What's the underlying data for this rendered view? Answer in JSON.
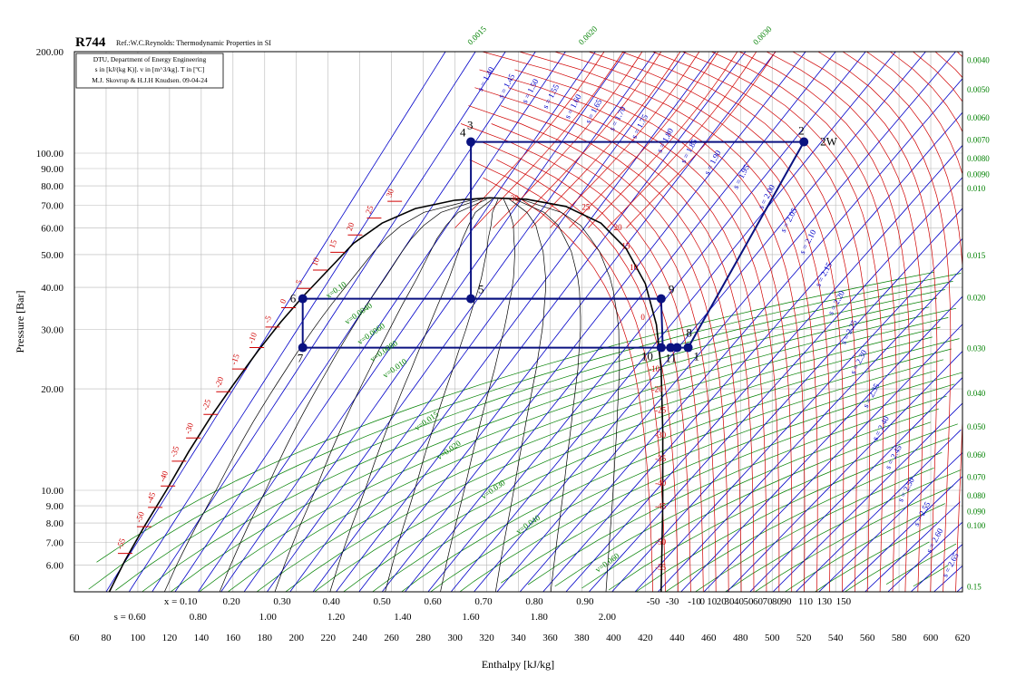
{
  "chart_data": {
    "type": "line",
    "title": "R744",
    "reference": "Ref.:W.C.Reynolds: Thermodynamic Properties in SI",
    "info_box": [
      "DTU, Department of Energy Engineering",
      "s in [kJ/(kg K)]. v in [m^3/kg]. T in [ºC]",
      "M.J. Skovrup & H.J.H Knudsen. 09-04-24"
    ],
    "xlabel": "Enthalpy [kJ/kg]",
    "ylabel": "Pressure [Bar]",
    "xlim": [
      60,
      620
    ],
    "ylim": [
      5,
      200
    ],
    "y_scale": "log",
    "grid": true,
    "x_ticks": [
      "60",
      "80",
      "100",
      "120",
      "140",
      "160",
      "180",
      "200",
      "220",
      "240",
      "260",
      "280",
      "300",
      "320",
      "340",
      "360",
      "380",
      "400",
      "420",
      "440",
      "460",
      "480",
      "500",
      "520",
      "540",
      "560",
      "580",
      "600",
      "620"
    ],
    "y_ticks": [
      {
        "value": 200,
        "label": "200.00"
      },
      {
        "value": 100,
        "label": "100.00"
      },
      {
        "value": 90,
        "label": "90.00"
      },
      {
        "value": 80,
        "label": "80.00"
      },
      {
        "value": 70,
        "label": "70.00"
      },
      {
        "value": 60,
        "label": "60.00"
      },
      {
        "value": 50,
        "label": "50.00"
      },
      {
        "value": 40,
        "label": "40.00"
      },
      {
        "value": 30,
        "label": "30.00"
      },
      {
        "value": 20,
        "label": "20.00"
      },
      {
        "value": 10,
        "label": "10.00"
      },
      {
        "value": 9,
        "label": "9.00"
      },
      {
        "value": 8,
        "label": "8.00"
      },
      {
        "value": 7,
        "label": "7.00"
      },
      {
        "value": 6,
        "label": "6.00"
      }
    ],
    "x_quality_ticks": [
      {
        "h": 127,
        "label": "x = 0.10"
      },
      {
        "h": 159,
        "label": "0.20"
      },
      {
        "h": 191,
        "label": "0.30"
      },
      {
        "h": 222,
        "label": "0.40"
      },
      {
        "h": 254,
        "label": "0.50"
      },
      {
        "h": 286,
        "label": "0.60"
      },
      {
        "h": 318,
        "label": "0.70"
      },
      {
        "h": 350,
        "label": "0.80"
      },
      {
        "h": 382,
        "label": "0.90"
      }
    ],
    "s_ticks": [
      {
        "h": 95,
        "label": "s = 0.60"
      },
      {
        "h": 138,
        "label": "0.80"
      },
      {
        "h": 182,
        "label": "1.00"
      },
      {
        "h": 225,
        "label": "1.20"
      },
      {
        "h": 267,
        "label": "1.40"
      },
      {
        "h": 310,
        "label": "1.60"
      },
      {
        "h": 353,
        "label": "1.80"
      },
      {
        "h": 396,
        "label": "2.00"
      }
    ],
    "t_ticks": [
      {
        "h": 425,
        "label": "-50"
      },
      {
        "h": 437,
        "label": "-30"
      },
      {
        "h": 451,
        "label": "-10"
      },
      {
        "h": 456,
        "label": "0"
      },
      {
        "h": 462,
        "label": "10"
      },
      {
        "h": 468,
        "label": "20"
      },
      {
        "h": 473,
        "label": "30"
      },
      {
        "h": 479,
        "label": "40"
      },
      {
        "h": 485,
        "label": "50"
      },
      {
        "h": 491,
        "label": "60"
      },
      {
        "h": 497,
        "label": "70"
      },
      {
        "h": 503,
        "label": "80"
      },
      {
        "h": 509,
        "label": "90"
      },
      {
        "h": 521,
        "label": "110"
      },
      {
        "h": 533,
        "label": "130"
      },
      {
        "h": 545,
        "label": "150"
      }
    ],
    "right_v_labels": [
      {
        "p": 190,
        "label": "0.0040"
      },
      {
        "p": 155,
        "label": "0.0050"
      },
      {
        "p": 128,
        "label": "0.0060"
      },
      {
        "p": 110,
        "label": "0.0070"
      },
      {
        "p": 97,
        "label": "0.0080"
      },
      {
        "p": 87,
        "label": "0.0090"
      },
      {
        "p": 79,
        "label": "0.010"
      },
      {
        "p": 50,
        "label": "0.015"
      },
      {
        "p": 37.5,
        "label": "0.020"
      },
      {
        "p": 26.5,
        "label": "0.030"
      },
      {
        "p": 19.5,
        "label": "0.040"
      },
      {
        "p": 15.5,
        "label": "0.050"
      },
      {
        "p": 12.8,
        "label": "0.060"
      },
      {
        "p": 11.0,
        "label": "0.070"
      },
      {
        "p": 9.7,
        "label": "0.080"
      },
      {
        "p": 8.7,
        "label": "0.090"
      },
      {
        "p": 7.9,
        "label": "0.100"
      },
      {
        "p": 5.2,
        "label": "0.15"
      }
    ],
    "top_v_labels": [
      {
        "h": 310,
        "label": "0.0015"
      },
      {
        "h": 380,
        "label": "0.0020"
      },
      {
        "h": 490,
        "label": "0.0030"
      }
    ],
    "sat_liquid_temps": [
      {
        "h": 92,
        "p": 6.5,
        "label": "-55"
      },
      {
        "h": 104,
        "p": 7.8,
        "label": "-50"
      },
      {
        "h": 111,
        "p": 8.9,
        "label": "-45"
      },
      {
        "h": 119,
        "p": 10.3,
        "label": "-40"
      },
      {
        "h": 126,
        "p": 12.2,
        "label": "-35"
      },
      {
        "h": 135,
        "p": 14.3,
        "label": "-30"
      },
      {
        "h": 146,
        "p": 16.8,
        "label": "-25"
      },
      {
        "h": 154,
        "p": 19.6,
        "label": "-20"
      },
      {
        "h": 164,
        "p": 22.9,
        "label": "-15"
      },
      {
        "h": 175,
        "p": 26.5,
        "label": "-10"
      },
      {
        "h": 185,
        "p": 30.5,
        "label": "-5"
      },
      {
        "h": 195,
        "p": 34.8,
        "label": "0"
      },
      {
        "h": 205,
        "p": 39.7,
        "label": "5"
      },
      {
        "h": 215,
        "p": 45.0,
        "label": "10"
      },
      {
        "h": 226,
        "p": 50.8,
        "label": "15"
      },
      {
        "h": 237,
        "p": 57.2,
        "label": "20"
      },
      {
        "h": 249,
        "p": 64.2,
        "label": "25"
      },
      {
        "h": 262,
        "p": 72.0,
        "label": "30"
      }
    ],
    "sat_vapor_temps": [
      {
        "h": 399,
        "p": 59,
        "label": "20"
      },
      {
        "h": 404,
        "p": 52,
        "label": "15"
      },
      {
        "h": 409,
        "p": 45,
        "label": "10"
      },
      {
        "h": 416,
        "p": 32,
        "label": "0"
      },
      {
        "h": 421,
        "p": 22.5,
        "label": "-10"
      },
      {
        "h": 423,
        "p": 19.6,
        "label": "-20"
      },
      {
        "h": 425,
        "p": 17.0,
        "label": "-25"
      },
      {
        "h": 425,
        "p": 14.3,
        "label": "-30"
      },
      {
        "h": 425,
        "p": 12.2,
        "label": "-35"
      },
      {
        "h": 425,
        "p": 10.3,
        "label": "-40"
      },
      {
        "h": 425,
        "p": 8.8,
        "label": "-45"
      },
      {
        "h": 425,
        "p": 6.9,
        "label": "-50"
      },
      {
        "h": 425,
        "p": 5.8,
        "label": "-55"
      }
    ],
    "isotherm_top_labels": [
      {
        "h": 335,
        "p": 72,
        "label": "30"
      },
      {
        "h": 380,
        "p": 68,
        "label": "25"
      }
    ],
    "quality_inline_labels": [
      {
        "h": 220,
        "p": 37,
        "label": "x=0.10"
      },
      {
        "h": 232,
        "p": 31,
        "label": "v=0.0040"
      },
      {
        "h": 240,
        "p": 27,
        "label": "v=0.0060"
      },
      {
        "h": 248,
        "p": 24,
        "label": "v=0.0080"
      },
      {
        "h": 256,
        "p": 21.5,
        "label": "v=0.010"
      },
      {
        "h": 276,
        "p": 15,
        "label": "v=0.015"
      },
      {
        "h": 290,
        "p": 12.3,
        "label": "v=0.020"
      },
      {
        "h": 318,
        "p": 9.4,
        "label": "v=0.030"
      },
      {
        "h": 340,
        "p": 7.4,
        "label": "v=0.040"
      },
      {
        "h": 390,
        "p": 5.7,
        "label": "v=0.060"
      }
    ],
    "entropy_inline_labels": [
      {
        "h": 317,
        "p": 152,
        "label": "s = 1.40"
      },
      {
        "h": 330,
        "p": 145,
        "label": "s = 1.45"
      },
      {
        "h": 345,
        "p": 140,
        "label": "s = 1.50"
      },
      {
        "h": 358,
        "p": 135,
        "label": "s = 1.55"
      },
      {
        "h": 372,
        "p": 126,
        "label": "s = 1.60"
      },
      {
        "h": 385,
        "p": 122,
        "label": "s = 1.65"
      },
      {
        "h": 400,
        "p": 116,
        "label": "s = 1.70"
      },
      {
        "h": 414,
        "p": 110,
        "label": "s = 1.75"
      },
      {
        "h": 430,
        "p": 100,
        "label": "s = 1.80"
      },
      {
        "h": 445,
        "p": 93,
        "label": "s = 1.85"
      },
      {
        "h": 460,
        "p": 86,
        "label": "s = 1.90"
      },
      {
        "h": 478,
        "p": 78,
        "label": "s = 1.95"
      },
      {
        "h": 494,
        "p": 68,
        "label": "s = 2.00"
      },
      {
        "h": 508,
        "p": 58,
        "label": "s = 2.05"
      },
      {
        "h": 520,
        "p": 50,
        "label": "s = 2.10"
      },
      {
        "h": 530,
        "p": 40,
        "label": "s = 2.15"
      },
      {
        "h": 538,
        "p": 33,
        "label": "s = 2.20"
      },
      {
        "h": 546,
        "p": 27,
        "label": "s = 2.25"
      },
      {
        "h": 552,
        "p": 22,
        "label": "s = 2.30"
      },
      {
        "h": 560,
        "p": 17.5,
        "label": "s = 2.35"
      },
      {
        "h": 566,
        "p": 14,
        "label": "s = 2.40"
      },
      {
        "h": 574,
        "p": 11.5,
        "label": "s = 2.45"
      },
      {
        "h": 582,
        "p": 9.2,
        "label": "s = 2.50"
      },
      {
        "h": 592,
        "p": 7.8,
        "label": "s = 2.55"
      },
      {
        "h": 600,
        "p": 6.5,
        "label": "s = 2.60"
      },
      {
        "h": 610,
        "p": 5.5,
        "label": "s = 2.65"
      }
    ],
    "cycle_points": [
      {
        "label": "2",
        "h": 520,
        "p": 108
      },
      {
        "label": "2W",
        "h": 528,
        "p": 108,
        "marker": false
      },
      {
        "label": "3",
        "h": 310,
        "p": 108
      },
      {
        "label": "4",
        "h": 310,
        "p": 108,
        "marker": false
      },
      {
        "label": "5",
        "h": 310,
        "p": 37
      },
      {
        "label": "6",
        "h": 204,
        "p": 37
      },
      {
        "label": "7",
        "h": 204,
        "p": 26.5
      },
      {
        "label": "8",
        "h": 440,
        "p": 26.5
      },
      {
        "label": "9",
        "h": 430,
        "p": 37
      },
      {
        "label": "10",
        "h": 430,
        "p": 26.5
      },
      {
        "label": "11",
        "h": 436,
        "p": 26.5
      },
      {
        "label": "1",
        "h": 447,
        "p": 26.5
      }
    ],
    "cycle_path": [
      [
        520,
        108
      ],
      [
        310,
        108
      ],
      [
        310,
        37
      ],
      [
        430,
        37
      ],
      [
        431,
        26.5
      ],
      [
        447,
        26.5
      ],
      [
        520,
        108
      ]
    ],
    "cycle_extra": [
      [
        [
          204,
          37
        ],
        [
          430,
          37
        ]
      ],
      [
        [
          204,
          37
        ],
        [
          204,
          26.5
        ]
      ],
      [
        [
          204,
          26.5
        ],
        [
          431,
          26.5
        ]
      ]
    ],
    "saturation_dome": [
      [
        82,
        5
      ],
      [
        92,
        6.2
      ],
      [
        104,
        7.8
      ],
      [
        118,
        10
      ],
      [
        132,
        13
      ],
      [
        146,
        16.5
      ],
      [
        160,
        20.5
      ],
      [
        176,
        26
      ],
      [
        190,
        31.5
      ],
      [
        204,
        37.5
      ],
      [
        220,
        45
      ],
      [
        236,
        54
      ],
      [
        254,
        62
      ],
      [
        275,
        68.5
      ],
      [
        300,
        72.5
      ],
      [
        322,
        73.7
      ],
      [
        345,
        73
      ],
      [
        370,
        69.5
      ],
      [
        392,
        62
      ],
      [
        408,
        52
      ],
      [
        420,
        41
      ],
      [
        427,
        31
      ],
      [
        430,
        23
      ],
      [
        431,
        15
      ],
      [
        431,
        9
      ],
      [
        430,
        5
      ]
    ],
    "colors": {
      "isotherm": "#d00000",
      "isentrope": "#0000c8",
      "isochore": "#008000",
      "quality": "#000000",
      "cycle": "#0a1280",
      "grid": "#b8b8b8"
    }
  }
}
